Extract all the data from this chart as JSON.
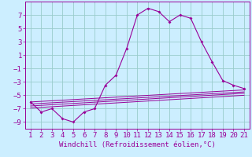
{
  "title": "",
  "xlabel": "Windchill (Refroidissement éolien,°C)",
  "ylabel": "",
  "x": [
    1,
    2,
    3,
    4,
    5,
    6,
    7,
    8,
    9,
    10,
    11,
    12,
    13,
    14,
    15,
    16,
    17,
    18,
    19,
    20,
    21
  ],
  "line1_y": [
    -6.0,
    -7.5,
    -7.0,
    -8.5,
    -9.0,
    -7.5,
    -7.0,
    -3.5,
    -2.0,
    2.0,
    7.0,
    8.0,
    7.5,
    6.0,
    7.0,
    6.5,
    3.0,
    0.0,
    -2.8,
    -3.5,
    -4.0
  ],
  "straight_lines": [
    {
      "x1": 1,
      "y1": -6.0,
      "x2": 21,
      "y2": -4.2
    },
    {
      "x1": 1,
      "y1": -6.3,
      "x2": 21,
      "y2": -4.5
    },
    {
      "x1": 1,
      "y1": -6.6,
      "x2": 21,
      "y2": -4.7
    },
    {
      "x1": 1,
      "y1": -6.9,
      "x2": 21,
      "y2": -5.0
    }
  ],
  "color": "#990099",
  "bg_color": "#cceeff",
  "grid_color": "#99cccc",
  "xlim": [
    0.5,
    21.5
  ],
  "ylim": [
    -10.0,
    9.0
  ],
  "yticks": [
    -9,
    -7,
    -5,
    -3,
    -1,
    1,
    3,
    5,
    7
  ],
  "xticks": [
    1,
    2,
    3,
    4,
    5,
    6,
    7,
    8,
    9,
    10,
    11,
    12,
    13,
    14,
    15,
    16,
    17,
    18,
    19,
    20,
    21
  ],
  "tick_fontsize": 6.5,
  "xlabel_fontsize": 6.5
}
